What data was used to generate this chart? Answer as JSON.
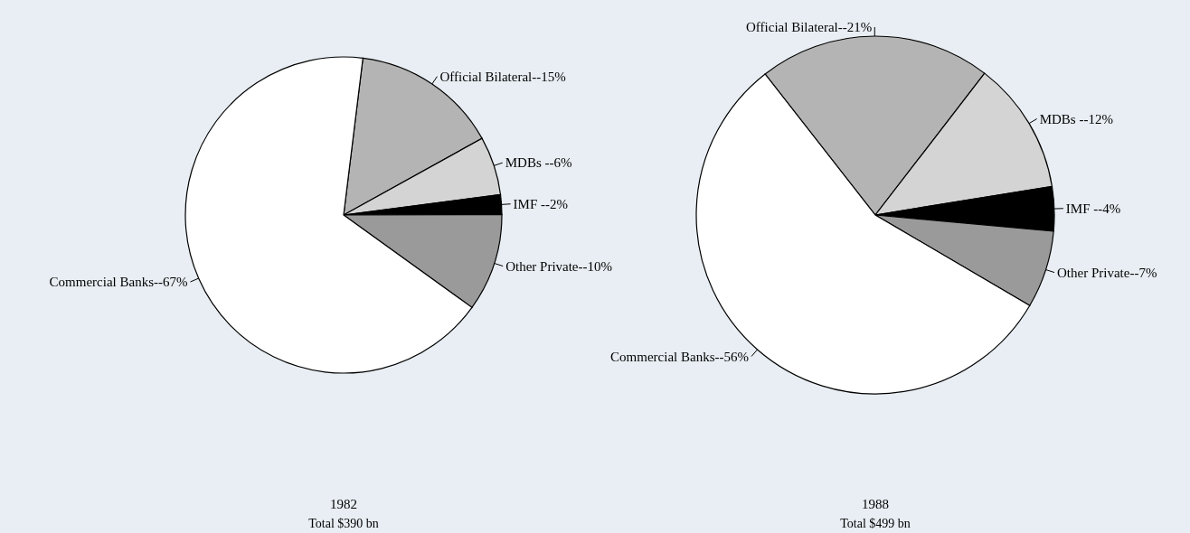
{
  "chart_data": [
    {
      "type": "pie",
      "title": "1982",
      "categories": [
        "Official Bilateral--",
        "MDBs --",
        "IMF --",
        "Other Private--",
        "Commercial Banks--"
      ],
      "values": [
        15,
        6,
        2,
        10,
        67
      ],
      "value_labels": [
        "15%",
        "6%",
        "2%",
        "10%",
        "67%"
      ],
      "colors": [
        "#b4b4b4",
        "#d4d4d4",
        "#000000",
        "#9a9a9a",
        "#ffffff"
      ],
      "annotations": [
        "Total $390 bn"
      ]
    },
    {
      "type": "pie",
      "title": "1988",
      "categories": [
        "Official Bilateral--",
        "MDBs --",
        "IMF --",
        "Other Private--",
        "Commercial Banks--"
      ],
      "values": [
        21,
        12,
        4,
        7,
        56
      ],
      "value_labels": [
        "21%",
        "12%",
        "4%",
        "7%",
        "56%"
      ],
      "colors": [
        "#b4b4b4",
        "#d4d4d4",
        "#000000",
        "#9a9a9a",
        "#ffffff"
      ],
      "annotations": [
        "Total $499 bn"
      ]
    }
  ]
}
